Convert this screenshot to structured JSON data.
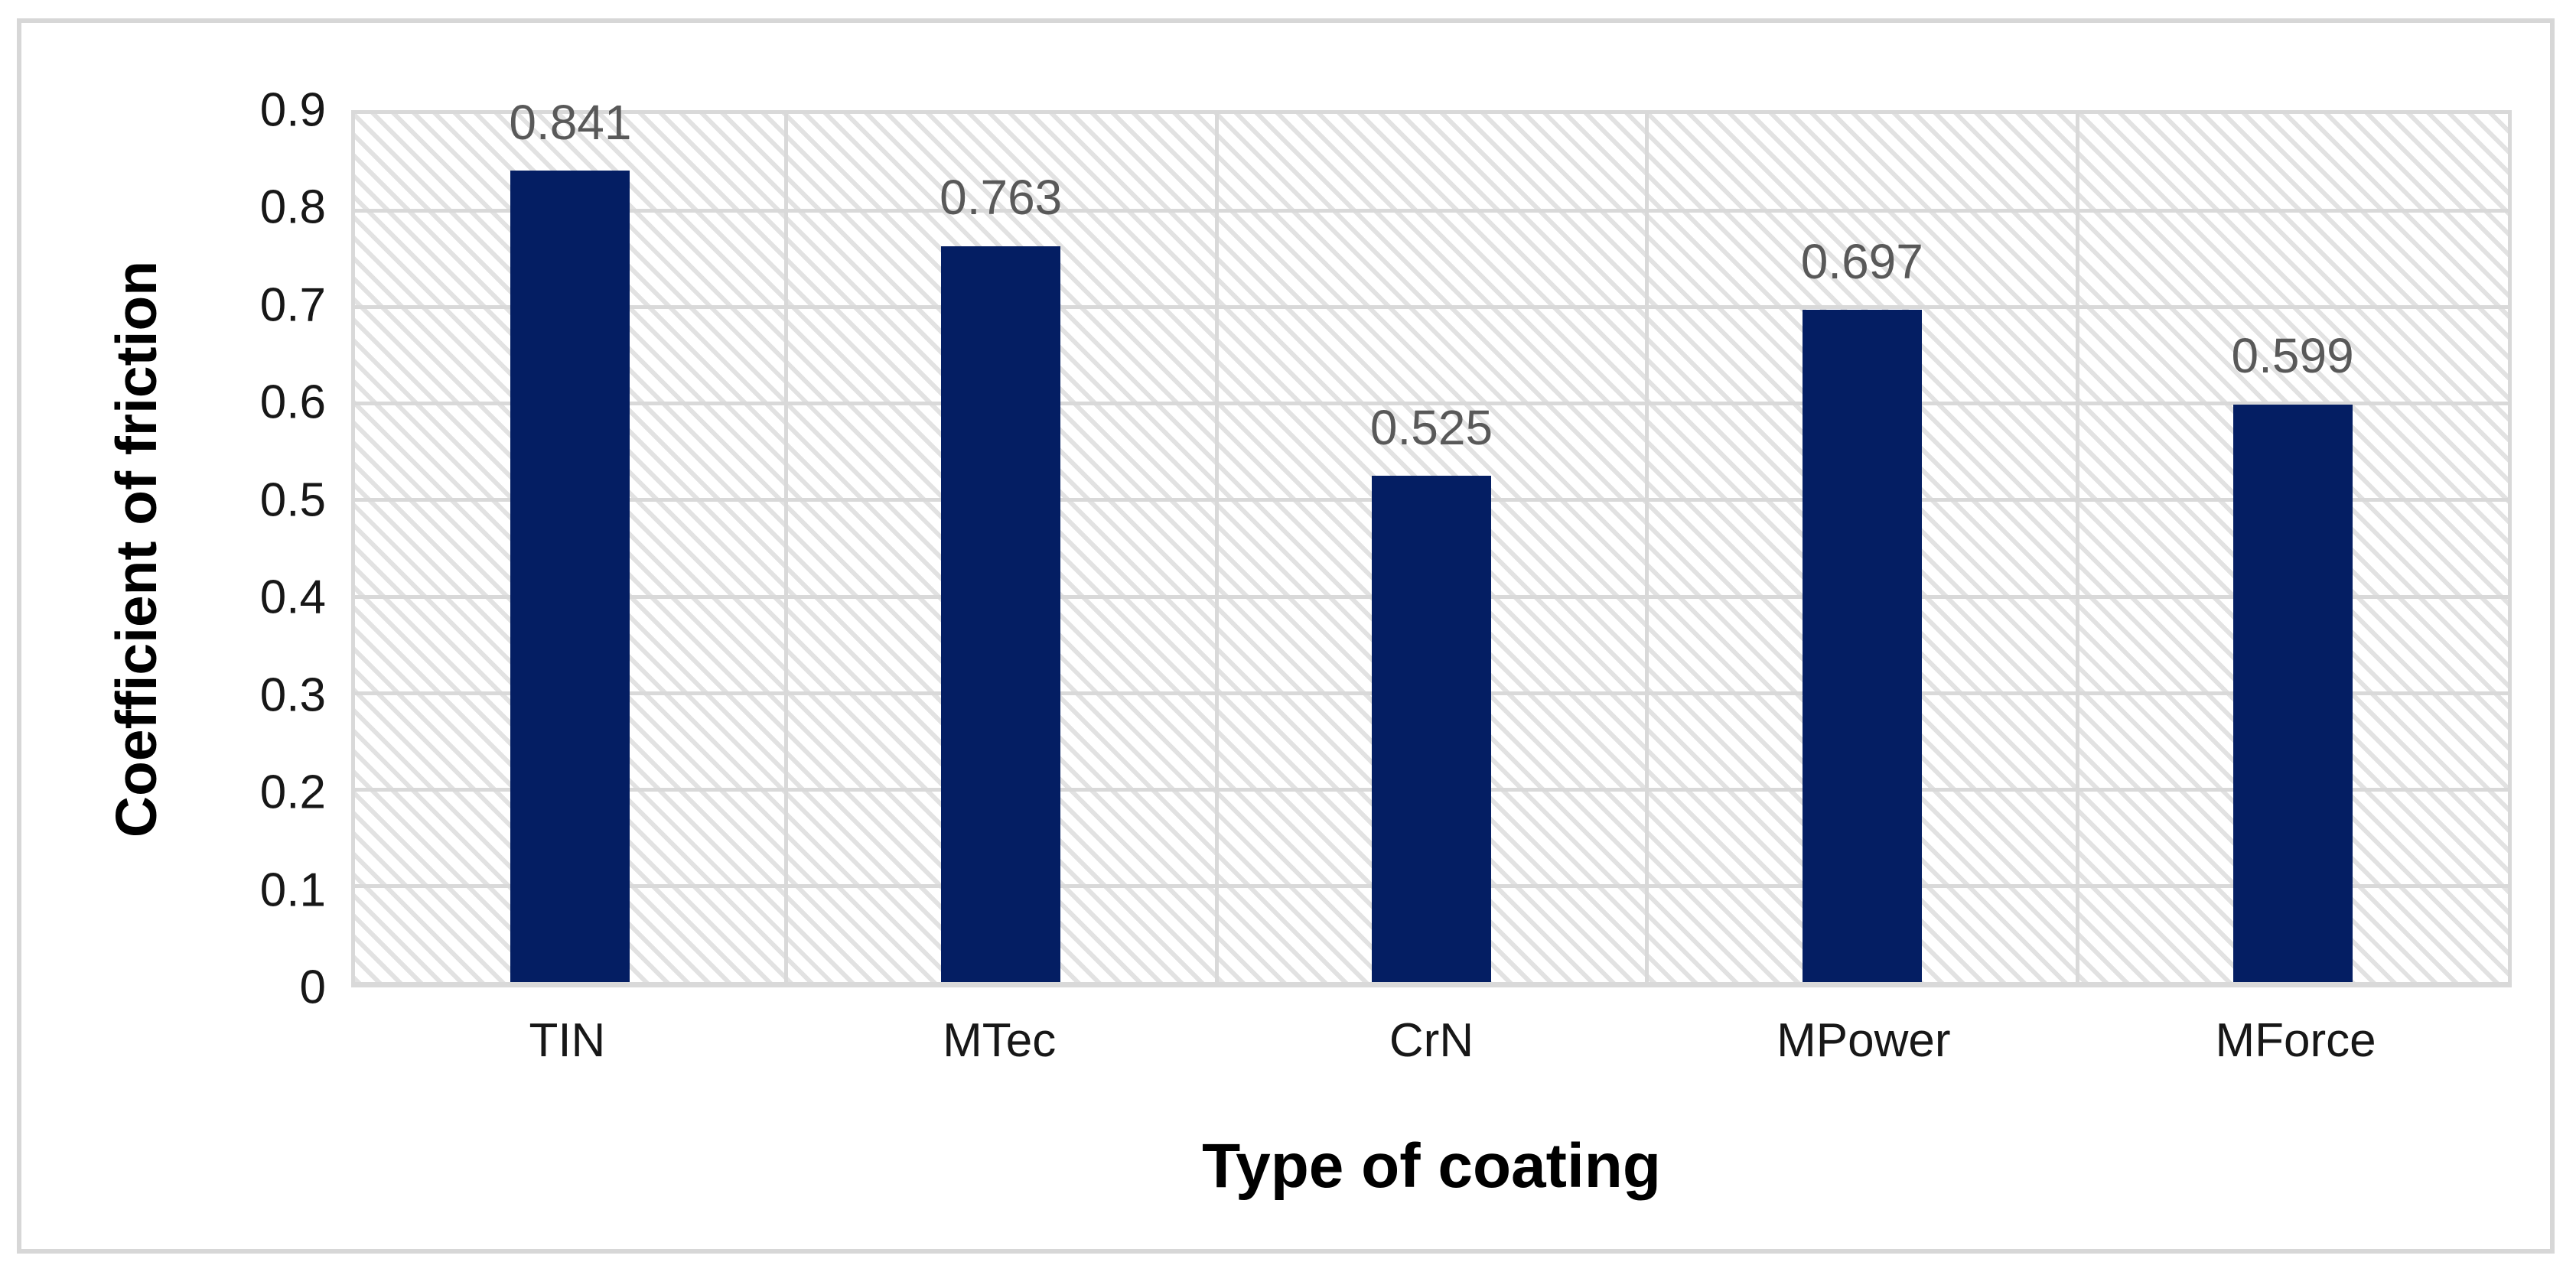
{
  "chart_data": {
    "type": "bar",
    "categories": [
      "TIN",
      "MTec",
      "CrN",
      "MPower",
      "MForce"
    ],
    "values": [
      0.841,
      0.763,
      0.525,
      0.697,
      0.599
    ],
    "data_labels": [
      "0.841",
      "0.763",
      "0.525",
      "0.697",
      "0.599"
    ],
    "title": "",
    "xlabel": "Type of coating",
    "ylabel": "Coefficient of friction",
    "ylim": [
      0,
      0.9
    ],
    "ytick_step": 0.1,
    "yticks": [
      "0.9",
      "0.8",
      "0.7",
      "0.6",
      "0.5",
      "0.4",
      "0.3",
      "0.2",
      "0.1",
      "0"
    ],
    "grid": true,
    "legend_position": "none",
    "plot_background": "light-downward-diagonal-hatch",
    "colors": {
      "bar": "#041E63",
      "gridline": "#D9D9D9",
      "hatch_line": "#E2E2E2",
      "value_label": "#595959",
      "axis_text": "#171717",
      "axis_title": "#000000",
      "frame_border": "#D7D7D7"
    }
  }
}
